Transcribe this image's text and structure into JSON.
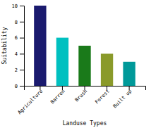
{
  "chart_data": {
    "type": "bar",
    "categories": [
      "Agriculture",
      "Barren",
      "Brush",
      "Forest",
      "Built up"
    ],
    "values": [
      10,
      6,
      5,
      4,
      3
    ],
    "colors": [
      "#1a1a6e",
      "#00c0c0",
      "#1a7a1a",
      "#8a9a2a",
      "#009999"
    ],
    "xlabel": "Landuse Types",
    "ylabel": "Suitability",
    "ylim": [
      0,
      10
    ],
    "yticks": [
      0,
      2,
      4,
      6,
      8,
      10
    ],
    "grid": false
  }
}
